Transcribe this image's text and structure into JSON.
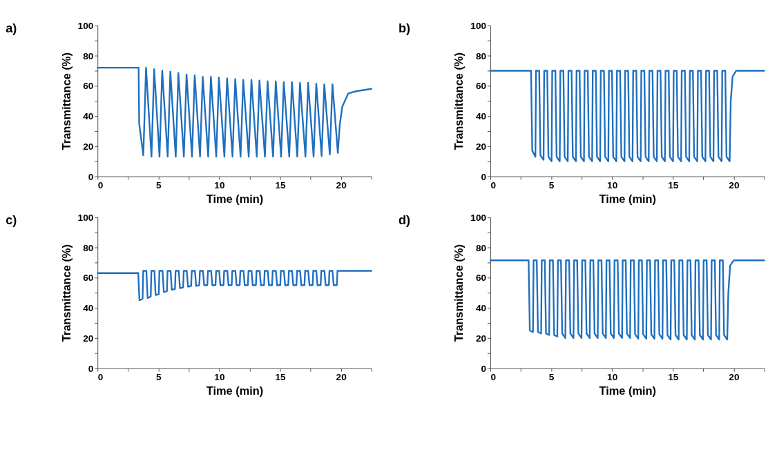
{
  "chart_data": [
    {
      "type": "line",
      "title": "a)",
      "xlabel": "Time (min)",
      "ylabel": "Transmittance (%)",
      "grid": false,
      "marker": "none",
      "line_style": "solid",
      "xlim": [
        0,
        22.5
      ],
      "xticks": [
        0,
        {
          "value": 2.5,
          "label": null
        },
        5,
        {
          "value": 7.5,
          "label": null
        },
        10,
        {
          "value": 12.5,
          "label": null
        },
        15,
        {
          "value": 17.5,
          "label": null
        },
        20,
        {
          "value": 22.5,
          "label": null
        }
      ],
      "ylim": [
        0,
        100
      ],
      "yticks": [
        0,
        {
          "value": 10,
          "label": null
        },
        20,
        {
          "value": 30,
          "label": null
        },
        40,
        {
          "value": 50,
          "label": null
        },
        60,
        {
          "value": 70,
          "label": null
        },
        80,
        {
          "value": 90,
          "label": null
        },
        100
      ],
      "series": [
        {
          "color": "#1f6fbf",
          "x": [
            0,
            3.37,
            3.42,
            3.76,
            3.98,
            4.43,
            4.65,
            5.09,
            5.31,
            5.76,
            5.98,
            6.42,
            6.64,
            7.09,
            7.31,
            7.76,
            7.98,
            8.42,
            8.64,
            9.09,
            9.31,
            9.75,
            9.97,
            10.42,
            10.64,
            11.09,
            11.31,
            11.75,
            11.97,
            12.42,
            12.64,
            13.08,
            13.3,
            13.75,
            13.97,
            14.42,
            14.64,
            15.08,
            15.3,
            15.75,
            15.97,
            16.41,
            16.63,
            17.08,
            17.3,
            17.75,
            17.97,
            18.41,
            18.63,
            19.08,
            19.3,
            19.74,
            19.9,
            20.1,
            20.6,
            21.3,
            22.5
          ],
          "values": [
            72,
            72,
            35,
            14,
            72,
            13,
            71,
            13,
            70,
            13,
            69.5,
            13,
            68.5,
            13,
            67.5,
            13,
            67,
            13,
            66,
            13,
            66,
            13,
            65.5,
            13,
            65,
            13,
            64.5,
            13,
            64,
            13,
            64,
            13,
            63.5,
            13,
            63,
            13,
            63,
            13,
            62.5,
            13,
            62.5,
            13,
            62,
            13,
            62,
            13,
            61.5,
            13.5,
            61,
            14.5,
            61,
            15.5,
            34,
            46,
            55,
            56.5,
            58
          ]
        }
      ]
    },
    {
      "type": "line",
      "title": "b)",
      "xlabel": "Time (min)",
      "ylabel": "Transmittance (%)",
      "grid": false,
      "marker": "none",
      "line_style": "solid",
      "xlim": [
        0,
        22.5
      ],
      "xticks": [
        0,
        {
          "value": 2.5,
          "label": null
        },
        5,
        {
          "value": 7.5,
          "label": null
        },
        10,
        {
          "value": 12.5,
          "label": null
        },
        15,
        {
          "value": 17.5,
          "label": null
        },
        20,
        {
          "value": 22.5,
          "label": null
        }
      ],
      "ylim": [
        0,
        100
      ],
      "yticks": [
        0,
        {
          "value": 10,
          "label": null
        },
        20,
        {
          "value": 30,
          "label": null
        },
        40,
        {
          "value": 50,
          "label": null
        },
        60,
        {
          "value": 70,
          "label": null
        },
        80,
        {
          "value": 90,
          "label": null
        },
        100
      ],
      "series": [
        {
          "color": "#1f6fbf",
          "x": [
            0,
            3.34,
            3.44,
            3.7,
            3.75,
            4.01,
            4.11,
            4.37,
            4.42,
            4.67,
            4.77,
            5.03,
            5.08,
            5.34,
            5.44,
            5.7,
            5.75,
            6.0,
            6.1,
            6.36,
            6.41,
            6.67,
            6.77,
            7.03,
            7.08,
            7.33,
            7.43,
            7.69,
            7.74,
            8.0,
            8.1,
            8.36,
            8.41,
            8.66,
            8.76,
            9.02,
            9.07,
            9.33,
            9.43,
            9.69,
            9.74,
            9.99,
            10.09,
            10.35,
            10.4,
            10.66,
            10.76,
            11.02,
            11.07,
            11.32,
            11.42,
            11.68,
            11.73,
            11.99,
            12.09,
            12.35,
            12.4,
            12.65,
            12.75,
            13.01,
            13.06,
            13.32,
            13.42,
            13.68,
            13.73,
            13.98,
            14.08,
            14.34,
            14.39,
            14.65,
            14.75,
            15.01,
            15.06,
            15.31,
            15.41,
            15.67,
            15.72,
            15.98,
            16.08,
            16.34,
            16.39,
            16.64,
            16.74,
            17.0,
            17.05,
            17.31,
            17.41,
            17.67,
            17.72,
            17.97,
            18.07,
            18.33,
            18.38,
            18.64,
            18.74,
            19.0,
            19.05,
            19.3,
            19.4,
            19.66,
            19.75,
            19.9,
            20.2,
            22.5
          ],
          "values": [
            70,
            70,
            17,
            13,
            70,
            70,
            14,
            11,
            70,
            70,
            13,
            10,
            70,
            70,
            13,
            10,
            70,
            70,
            13,
            10,
            70,
            70,
            13,
            10,
            70,
            70,
            13,
            10,
            70,
            70,
            13,
            10,
            70,
            70,
            13,
            10,
            70,
            70,
            13,
            10,
            70,
            70,
            13,
            10,
            70,
            70,
            13,
            10,
            70,
            70,
            13,
            10,
            70,
            70,
            13,
            10,
            70,
            70,
            13,
            10,
            70,
            70,
            13,
            10,
            70,
            70,
            13,
            10,
            70,
            70,
            13,
            10,
            70,
            70,
            13,
            10,
            70,
            70,
            13,
            10,
            70,
            70,
            13,
            10,
            70,
            70,
            13,
            10,
            70,
            70,
            13,
            10,
            70,
            70,
            13,
            10,
            70,
            70,
            13,
            10,
            50,
            66,
            70,
            70
          ]
        }
      ]
    },
    {
      "type": "line",
      "title": "c)",
      "xlabel": "Time (min)",
      "ylabel": "Transmittance (%)",
      "grid": false,
      "marker": "none",
      "line_style": "solid",
      "xlim": [
        0,
        22.5
      ],
      "xticks": [
        0,
        {
          "value": 2.5,
          "label": null
        },
        5,
        {
          "value": 7.5,
          "label": null
        },
        10,
        {
          "value": 12.5,
          "label": null
        },
        15,
        {
          "value": 17.5,
          "label": null
        },
        20,
        {
          "value": 22.5,
          "label": null
        }
      ],
      "ylim": [
        0,
        100
      ],
      "yticks": [
        0,
        {
          "value": 10,
          "label": null
        },
        20,
        {
          "value": 30,
          "label": null
        },
        40,
        {
          "value": 50,
          "label": null
        },
        60,
        {
          "value": 70,
          "label": null
        },
        80,
        {
          "value": 90,
          "label": null
        },
        100
      ],
      "series": [
        {
          "color": "#1f6fbf",
          "x": [
            0,
            3.34,
            3.44,
            3.7,
            3.75,
            4.01,
            4.11,
            4.37,
            4.42,
            4.67,
            4.77,
            5.03,
            5.08,
            5.34,
            5.44,
            5.7,
            5.75,
            6.0,
            6.1,
            6.36,
            6.41,
            6.67,
            6.77,
            7.03,
            7.08,
            7.33,
            7.43,
            7.69,
            7.74,
            8.0,
            8.1,
            8.36,
            8.41,
            8.66,
            8.76,
            9.02,
            9.07,
            9.33,
            9.43,
            9.69,
            9.74,
            9.99,
            10.09,
            10.35,
            10.4,
            10.66,
            10.76,
            11.02,
            11.07,
            11.32,
            11.42,
            11.68,
            11.73,
            11.99,
            12.09,
            12.35,
            12.4,
            12.65,
            12.75,
            13.01,
            13.06,
            13.32,
            13.42,
            13.68,
            13.73,
            13.98,
            14.08,
            14.34,
            14.39,
            14.65,
            14.75,
            15.01,
            15.06,
            15.31,
            15.41,
            15.67,
            15.72,
            15.98,
            16.08,
            16.34,
            16.39,
            16.64,
            16.74,
            17.0,
            17.05,
            17.31,
            17.41,
            17.67,
            17.72,
            17.97,
            18.07,
            18.33,
            18.38,
            18.64,
            18.74,
            19.0,
            19.05,
            19.3,
            19.4,
            19.66,
            19.71,
            22.5
          ],
          "values": [
            63,
            63,
            45,
            46,
            64.5,
            64.5,
            46.5,
            47.5,
            64.5,
            64.5,
            48.5,
            49,
            64.5,
            64.5,
            50.5,
            51,
            64.5,
            64.5,
            52,
            52.5,
            64.5,
            64.5,
            53,
            53.5,
            64.5,
            64.5,
            54,
            54.5,
            64.5,
            64.5,
            54.5,
            55,
            64.5,
            64.5,
            55,
            55,
            64.5,
            64.5,
            55,
            55,
            64.5,
            64.5,
            55,
            55,
            64.5,
            64.5,
            55,
            55,
            64.5,
            64.5,
            55,
            55,
            64.5,
            64.5,
            55,
            55,
            64.5,
            64.5,
            55,
            55,
            64.5,
            64.5,
            55,
            55,
            64.5,
            64.5,
            55,
            55,
            64.5,
            64.5,
            55,
            55,
            64.5,
            64.5,
            55,
            55,
            64.5,
            64.5,
            55,
            55,
            64.5,
            64.5,
            55,
            55,
            64.5,
            64.5,
            55,
            55,
            64.5,
            64.5,
            55,
            55,
            64.5,
            64.5,
            55,
            55,
            64.5,
            64.5,
            55,
            55,
            64.5,
            64.5
          ]
        }
      ]
    },
    {
      "type": "line",
      "title": "d)",
      "xlabel": "Time (min)",
      "ylabel": "Transmittance (%)",
      "grid": false,
      "marker": "none",
      "line_style": "solid",
      "xlim": [
        0,
        22.5
      ],
      "xticks": [
        0,
        {
          "value": 2.5,
          "label": null
        },
        5,
        {
          "value": 7.5,
          "label": null
        },
        10,
        {
          "value": 12.5,
          "label": null
        },
        15,
        {
          "value": 17.5,
          "label": null
        },
        20,
        {
          "value": 22.5,
          "label": null
        }
      ],
      "ylim": [
        0,
        100
      ],
      "yticks": [
        0,
        {
          "value": 10,
          "label": null
        },
        20,
        {
          "value": 30,
          "label": null
        },
        40,
        {
          "value": 50,
          "label": null
        },
        60,
        {
          "value": 70,
          "label": null
        },
        80,
        {
          "value": 90,
          "label": null
        },
        100
      ],
      "series": [
        {
          "color": "#1f6fbf",
          "x": [
            0,
            3.14,
            3.24,
            3.5,
            3.55,
            3.81,
            3.91,
            4.17,
            4.22,
            4.47,
            4.57,
            4.83,
            4.88,
            5.14,
            5.24,
            5.5,
            5.55,
            5.8,
            5.9,
            6.16,
            6.21,
            6.47,
            6.57,
            6.83,
            6.88,
            7.13,
            7.23,
            7.49,
            7.54,
            7.8,
            7.9,
            8.16,
            8.21,
            8.46,
            8.56,
            8.82,
            8.87,
            9.13,
            9.23,
            9.49,
            9.54,
            9.79,
            9.89,
            10.15,
            10.2,
            10.46,
            10.56,
            10.82,
            10.87,
            11.12,
            11.22,
            11.48,
            11.53,
            11.79,
            11.89,
            12.15,
            12.2,
            12.45,
            12.55,
            12.81,
            12.86,
            13.12,
            13.22,
            13.48,
            13.53,
            13.78,
            13.88,
            14.14,
            14.19,
            14.45,
            14.55,
            14.81,
            14.86,
            15.11,
            15.21,
            15.47,
            15.52,
            15.78,
            15.88,
            16.14,
            16.19,
            16.44,
            16.54,
            16.8,
            16.85,
            17.11,
            17.21,
            17.47,
            17.52,
            17.77,
            17.87,
            18.13,
            18.18,
            18.44,
            18.54,
            18.8,
            18.85,
            19.1,
            19.2,
            19.46,
            19.55,
            19.7,
            20.0,
            22.5
          ],
          "values": [
            71.5,
            71.5,
            25,
            24,
            71.5,
            71.5,
            24,
            23,
            71.5,
            71.5,
            23,
            22,
            71.5,
            71.5,
            22,
            21,
            71.5,
            71.5,
            23,
            20,
            71.5,
            71.5,
            23,
            20,
            71.5,
            71.5,
            23,
            20,
            71.5,
            71.5,
            23,
            20,
            71.5,
            71.5,
            23,
            20,
            71.5,
            71.5,
            23,
            20,
            71.5,
            71.5,
            23,
            20,
            71.5,
            71.5,
            23,
            20,
            71.5,
            71.5,
            23,
            20,
            71.5,
            71.5,
            22.5,
            19.5,
            71.5,
            71.5,
            22.5,
            19.5,
            71.5,
            71.5,
            22.5,
            19.5,
            71.5,
            71.5,
            22.5,
            19.5,
            71.5,
            71.5,
            22,
            19,
            71.5,
            71.5,
            22,
            19,
            71.5,
            71.5,
            22,
            19,
            71.5,
            71.5,
            22,
            19,
            71.5,
            71.5,
            22,
            19,
            71.5,
            71.5,
            22,
            19,
            71.5,
            71.5,
            22,
            19,
            71.5,
            71.5,
            22,
            19,
            50,
            68,
            71.5,
            71.5
          ]
        }
      ]
    }
  ]
}
